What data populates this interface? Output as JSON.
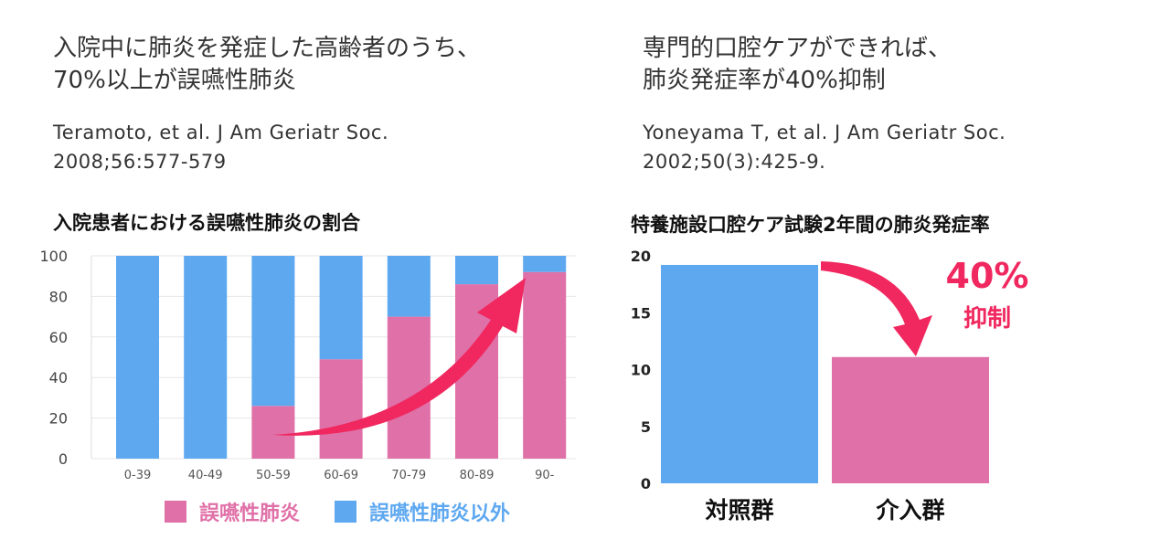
{
  "left": {
    "heading": "入院中に肺炎を発症した高齢者のうち、\n70%以上が誤嚥性肺炎",
    "citation": "Teramoto, et al. J Am Geriatr Soc.\n2008;56:577-579"
  },
  "right": {
    "heading": "専門的口腔ケアができれば、\n肺炎発症率が40%抑制",
    "citation": "Yoneyama T, et al. J Am Geriatr Soc.\n2002;50(3):425-9."
  },
  "colors": {
    "pink": "#e070a8",
    "blue": "#5ea8f0",
    "arrow": "#f0285f",
    "accent_text": "#f0285f"
  },
  "chart_data": [
    {
      "type": "bar",
      "stacked": true,
      "title": "入院患者における誤嚥性肺炎の割合",
      "categories": [
        "0-39",
        "40-49",
        "50-59",
        "60-69",
        "70-79",
        "80-89",
        "90-"
      ],
      "series": [
        {
          "name": "誤嚥性肺炎",
          "color": "#e070a8",
          "values": [
            0,
            0,
            26,
            49,
            70,
            86,
            92
          ]
        },
        {
          "name": "誤嚥性肺炎以外",
          "color": "#5ea8f0",
          "values": [
            100,
            100,
            74,
            51,
            30,
            14,
            8
          ]
        }
      ],
      "yticks": [
        0,
        20,
        40,
        60,
        80,
        100
      ],
      "ylim": [
        0,
        100
      ],
      "legend_position": "bottom"
    },
    {
      "type": "bar",
      "title": "特養施設口腔ケア試験2年間の肺炎発症率",
      "categories": [
        "対照群",
        "介入群"
      ],
      "values": [
        19.2,
        11.1
      ],
      "colors": [
        "#5ea8f0",
        "#e070a8"
      ],
      "yticks": [
        0,
        5,
        10,
        15,
        20
      ],
      "ylim": [
        0,
        20
      ],
      "annotation": {
        "value": "40%",
        "label": "抑制"
      }
    }
  ]
}
